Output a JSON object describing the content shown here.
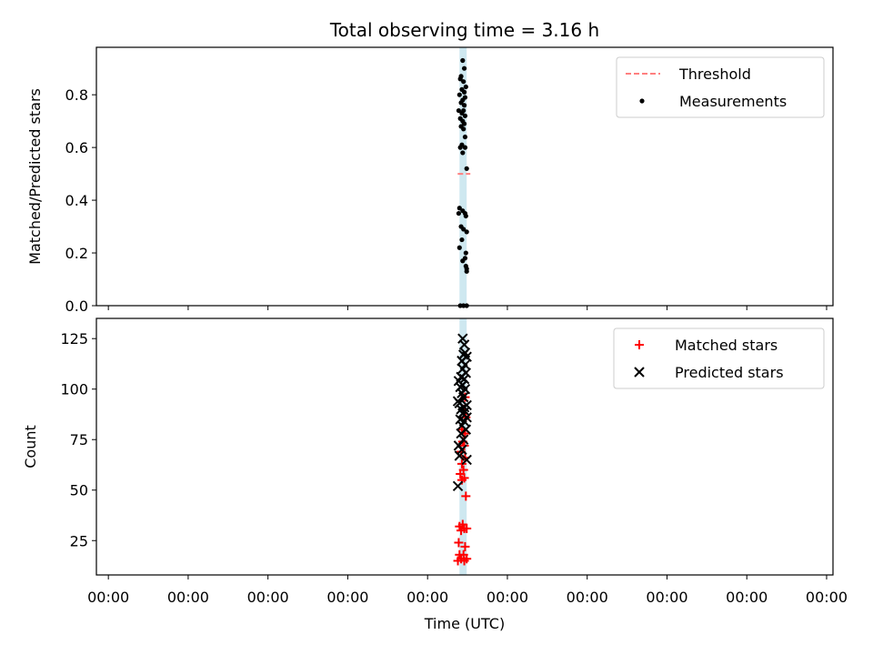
{
  "chart_data": {
    "title": "Total observing time = 3.16 h",
    "x_tick_labels": [
      "00:00",
      "00:00",
      "00:00",
      "00:00",
      "00:00",
      "00:00",
      "00:00",
      "00:00",
      "00:00",
      "00:00"
    ],
    "xlabel": "Time (UTC)",
    "band_color": "#add8e6",
    "panels": [
      {
        "type": "scatter",
        "ylabel": "Matched/Predicted stars",
        "ylim": [
          0,
          0.98
        ],
        "yticks": [
          0.0,
          0.2,
          0.4,
          0.6,
          0.8
        ],
        "ytick_labels": [
          "0.0",
          "0.2",
          "0.4",
          "0.6",
          "0.8"
        ],
        "legend_position": "top-right",
        "legend": [
          {
            "label": "Threshold",
            "style": "dashed-line",
            "color": "#ff7f7f"
          },
          {
            "label": "Measurements",
            "style": "dot",
            "color": "#000000"
          }
        ],
        "threshold": 0.5,
        "series": [
          {
            "name": "Measurements",
            "color": "#000000",
            "points": [
              [
                4.44,
                0.93
              ],
              [
                4.46,
                0.9
              ],
              [
                4.42,
                0.87
              ],
              [
                4.41,
                0.86
              ],
              [
                4.45,
                0.85
              ],
              [
                4.48,
                0.83
              ],
              [
                4.43,
                0.82
              ],
              [
                4.46,
                0.81
              ],
              [
                4.4,
                0.8
              ],
              [
                4.47,
                0.79
              ],
              [
                4.44,
                0.78
              ],
              [
                4.42,
                0.77
              ],
              [
                4.46,
                0.76
              ],
              [
                4.39,
                0.74
              ],
              [
                4.45,
                0.74
              ],
              [
                4.43,
                0.73
              ],
              [
                4.47,
                0.72
              ],
              [
                4.41,
                0.71
              ],
              [
                4.44,
                0.7
              ],
              [
                4.46,
                0.69
              ],
              [
                4.42,
                0.68
              ],
              [
                4.45,
                0.67
              ],
              [
                4.47,
                0.64
              ],
              [
                4.43,
                0.61
              ],
              [
                4.41,
                0.6
              ],
              [
                4.47,
                0.6
              ],
              [
                4.44,
                0.58
              ],
              [
                4.49,
                0.52
              ],
              [
                4.4,
                0.37
              ],
              [
                4.44,
                0.36
              ],
              [
                4.39,
                0.35
              ],
              [
                4.47,
                0.35
              ],
              [
                4.48,
                0.34
              ],
              [
                4.42,
                0.3
              ],
              [
                4.45,
                0.29
              ],
              [
                4.49,
                0.28
              ],
              [
                4.43,
                0.25
              ],
              [
                4.4,
                0.22
              ],
              [
                4.48,
                0.2
              ],
              [
                4.47,
                0.18
              ],
              [
                4.44,
                0.17
              ],
              [
                4.48,
                0.15
              ],
              [
                4.49,
                0.13
              ],
              [
                4.49,
                0.14
              ],
              [
                4.41,
                0.0
              ],
              [
                4.45,
                0.0
              ],
              [
                4.49,
                0.0
              ]
            ]
          }
        ]
      },
      {
        "type": "scatter",
        "ylabel": "Count",
        "ylim": [
          8,
          135
        ],
        "yticks": [
          25,
          50,
          75,
          100,
          125
        ],
        "ytick_labels": [
          "25",
          "50",
          "75",
          "100",
          "125"
        ],
        "legend_position": "top-right",
        "legend": [
          {
            "label": "Matched stars",
            "style": "plus",
            "color": "#ff0000"
          },
          {
            "label": "Predicted stars",
            "style": "cross",
            "color": "#000000"
          }
        ],
        "series": [
          {
            "name": "Matched stars",
            "color": "#ff0000",
            "marker": "plus",
            "points": [
              [
                4.38,
                15
              ],
              [
                4.42,
                16
              ],
              [
                4.46,
                15
              ],
              [
                4.49,
                16
              ],
              [
                4.4,
                18
              ],
              [
                4.45,
                18
              ],
              [
                4.39,
                24
              ],
              [
                4.47,
                22
              ],
              [
                4.42,
                30
              ],
              [
                4.46,
                31
              ],
              [
                4.49,
                31
              ],
              [
                4.4,
                32
              ],
              [
                4.44,
                33
              ],
              [
                4.48,
                47
              ],
              [
                4.43,
                55
              ],
              [
                4.46,
                56
              ],
              [
                4.41,
                58
              ],
              [
                4.45,
                60
              ],
              [
                4.43,
                63
              ],
              [
                4.47,
                66
              ],
              [
                4.42,
                69
              ],
              [
                4.46,
                72
              ],
              [
                4.44,
                74
              ],
              [
                4.47,
                78
              ],
              [
                4.43,
                80
              ],
              [
                4.48,
                86
              ],
              [
                4.45,
                90
              ],
              [
                4.47,
                96
              ]
            ]
          },
          {
            "name": "Predicted stars",
            "color": "#000000",
            "marker": "cross",
            "points": [
              [
                4.38,
                52
              ],
              [
                4.49,
                65
              ],
              [
                4.4,
                67
              ],
              [
                4.43,
                70
              ],
              [
                4.39,
                72
              ],
              [
                4.45,
                75
              ],
              [
                4.42,
                78
              ],
              [
                4.48,
                80
              ],
              [
                4.43,
                82
              ],
              [
                4.46,
                84
              ],
              [
                4.41,
                85
              ],
              [
                4.49,
                86
              ],
              [
                4.44,
                88
              ],
              [
                4.47,
                89
              ],
              [
                4.42,
                90
              ],
              [
                4.46,
                91
              ],
              [
                4.49,
                92
              ],
              [
                4.4,
                93
              ],
              [
                4.38,
                94
              ],
              [
                4.45,
                96
              ],
              [
                4.43,
                98
              ],
              [
                4.47,
                100
              ],
              [
                4.41,
                101
              ],
              [
                4.44,
                102
              ],
              [
                4.39,
                104
              ],
              [
                4.46,
                105
              ],
              [
                4.42,
                106
              ],
              [
                4.48,
                108
              ],
              [
                4.44,
                110
              ],
              [
                4.47,
                112
              ],
              [
                4.43,
                114
              ],
              [
                4.49,
                116
              ],
              [
                4.45,
                117
              ],
              [
                4.47,
                118
              ],
              [
                4.46,
                122
              ],
              [
                4.44,
                125
              ]
            ]
          }
        ]
      }
    ]
  }
}
